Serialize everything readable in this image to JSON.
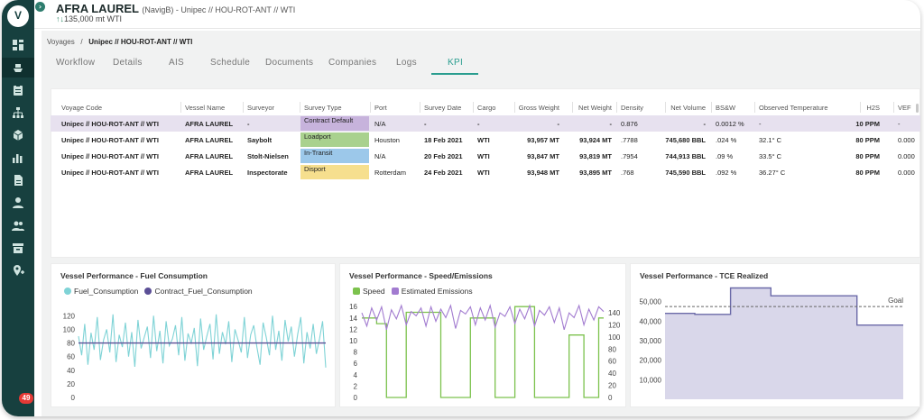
{
  "app": {
    "logo_text": "V",
    "notification_count": "49"
  },
  "header": {
    "title": "AFRA LAUREL",
    "title_suffix": "(NavigB) - Unipec // HOU-ROT-ANT // WTI",
    "quantity": "135,000 mt WTI"
  },
  "sidebar": {
    "items": [
      {
        "icon": "dashboard-icon"
      },
      {
        "icon": "ship-icon",
        "selected": true
      },
      {
        "icon": "clipboard-icon"
      },
      {
        "icon": "org-chart-icon"
      },
      {
        "icon": "cube-icon"
      },
      {
        "icon": "bar-chart-icon"
      },
      {
        "icon": "document-icon"
      },
      {
        "icon": "user-icon"
      },
      {
        "icon": "users-icon"
      },
      {
        "icon": "archive-icon"
      },
      {
        "icon": "location-icon"
      }
    ]
  },
  "breadcrumb": {
    "root": "Voyages",
    "separator": "/",
    "current": "Unipec // HOU-ROT-ANT // WTI"
  },
  "tabs": [
    {
      "label": "Workflow"
    },
    {
      "label": "Details"
    },
    {
      "label": "AIS"
    },
    {
      "label": "Schedule"
    },
    {
      "label": "Documents"
    },
    {
      "label": "Companies"
    },
    {
      "label": "Logs"
    },
    {
      "label": "KPI",
      "active": true
    }
  ],
  "table": {
    "columns": [
      "Voyage Code",
      "Vessel Name",
      "Surveyor",
      "Survey Type",
      "Port",
      "Survey Date",
      "Cargo",
      "Gross Weight",
      "Net Weight",
      "Density",
      "Net Volume",
      "BS&W",
      "Observed Temperature",
      "H2S",
      "VEF"
    ],
    "rows": [
      {
        "voyage": "Unipec // HOU-ROT-ANT // WTI",
        "vessel": "AFRA LAUREL",
        "surveyor": "-",
        "survey_type": "Contract Default",
        "type_color": "#c7b3dc",
        "port": "N/A",
        "date": "-",
        "cargo": "-",
        "gross": "-",
        "net": "-",
        "density": "0.876",
        "volume": "-",
        "bsw": "0.0012 %",
        "temp": "-",
        "h2s": "10 PPM",
        "vef": "-"
      },
      {
        "voyage": "Unipec // HOU-ROT-ANT // WTI",
        "vessel": "AFRA LAUREL",
        "surveyor": "Saybolt",
        "survey_type": "Loadport",
        "type_color": "#a9d18e",
        "port": "Houston",
        "date": "18 Feb 2021",
        "cargo": "WTI",
        "gross": "93,957 MT",
        "net": "93,924 MT",
        "density": ".7788",
        "volume": "745,680 BBL",
        "bsw": ".024 %",
        "temp": "32.1° C",
        "h2s": "80 PPM",
        "vef": "0.000"
      },
      {
        "voyage": "Unipec // HOU-ROT-ANT // WTI",
        "vessel": "AFRA LAUREL",
        "surveyor": "Stolt-Nielsen",
        "survey_type": "In-Transit",
        "type_color": "#9cc8ea",
        "port": "N/A",
        "date": "20 Feb 2021",
        "cargo": "WTI",
        "gross": "93,847 MT",
        "net": "93,819 MT",
        "density": ".7954",
        "volume": "744,913 BBL",
        "bsw": ".09 %",
        "temp": "33.5° C",
        "h2s": "80 PPM",
        "vef": "0.000"
      },
      {
        "voyage": "Unipec // HOU-ROT-ANT // WTI",
        "vessel": "AFRA LAUREL",
        "surveyor": "Inspectorate",
        "survey_type": "Disport",
        "type_color": "#f6df8e",
        "port": "Rotterdam",
        "date": "24 Feb 2021",
        "cargo": "WTI",
        "gross": "93,948 MT",
        "net": "93,895 MT",
        "density": ".768",
        "volume": "745,590 BBL",
        "bsw": ".092 %",
        "temp": "36.27° C",
        "h2s": "80 PPM",
        "vef": "0.000"
      }
    ]
  },
  "colors": {
    "accent": "#2a9d8f",
    "sidebar": "#17403f",
    "fuel": "#7fd3d6",
    "contract": "#5b4f96",
    "speed": "#7cc24d",
    "emissions": "#a27bd0",
    "tce": "#6b6aa8"
  },
  "chart_data": [
    {
      "type": "line",
      "title": "Vessel Performance - Fuel Consumption",
      "series": [
        {
          "name": "Fuel_Consumption",
          "color": "#7fd3d6",
          "values": [
            90,
            62,
            108,
            48,
            95,
            70,
            118,
            55,
            84,
            100,
            66,
            122,
            52,
            92,
            74,
            110,
            60,
            96,
            45,
            114,
            72,
            88,
            104,
            58,
            120,
            68,
            98,
            50,
            112,
            76,
            86,
            106,
            62,
            118,
            54,
            94,
            80,
            102,
            46,
            116,
            70,
            90,
            108,
            56,
            122,
            64,
            96,
            78,
            112,
            52,
            100,
            84,
            66,
            118,
            58,
            92,
            106,
            74,
            48,
            110,
            88,
            62,
            120,
            70,
            98,
            54,
            114,
            82,
            104,
            60,
            92,
            118,
            50,
            96,
            72,
            108,
            64,
            86,
            112,
            44
          ]
        },
        {
          "name": "Contract_Fuel_Consumption",
          "color": "#5b4f96",
          "values": [
            80,
            80
          ]
        }
      ],
      "yticks": [
        0,
        20,
        40,
        60,
        80,
        100,
        120
      ],
      "ylim": [
        0,
        135
      ]
    },
    {
      "type": "line",
      "title": "Vessel Performance - Speed/Emissions",
      "series": [
        {
          "name": "Speed",
          "color": "#7cc24d",
          "axis": "left",
          "values": [
            14,
            14,
            14,
            13,
            13,
            0,
            0,
            0,
            0,
            15,
            15,
            15,
            15,
            15,
            15,
            15,
            0,
            0,
            0,
            0,
            0,
            0,
            14,
            14,
            14,
            14,
            14,
            0,
            0,
            0,
            0,
            16,
            16,
            16,
            16,
            0,
            0,
            0,
            0,
            0,
            0,
            0,
            11,
            11,
            11,
            0,
            0,
            0,
            14,
            14
          ]
        },
        {
          "name": "Estimated Emissions",
          "color": "#a27bd0",
          "axis": "right",
          "values": [
            140,
            118,
            148,
            128,
            150,
            112,
            145,
            130,
            152,
            120,
            142,
            135,
            148,
            118,
            150,
            126,
            146,
            132,
            152,
            114,
            144,
            138,
            150,
            120,
            148,
            128,
            152,
            116,
            140,
            134,
            150,
            122,
            146,
            130,
            152,
            118,
            144,
            136,
            150,
            124,
            148,
            112,
            140,
            132,
            152,
            120,
            146,
            128,
            150,
            142
          ]
        }
      ],
      "yticks_left": [
        0,
        2,
        4,
        6,
        8,
        10,
        12,
        14,
        16
      ],
      "yticks_right": [
        0,
        20,
        40,
        60,
        80,
        100,
        120,
        140
      ],
      "ylim_left": [
        0,
        16.5
      ],
      "ylim_right": [
        0,
        155
      ]
    },
    {
      "type": "area",
      "title": "Vessel Performance - TCE Realized",
      "series": [
        {
          "name": "TCE Realized",
          "color": "#6b6aa8",
          "points": [
            [
              0,
              44000
            ],
            [
              0.45,
              44000
            ],
            [
              0.45,
              43500
            ],
            [
              0.99,
              43500
            ],
            [
              0.99,
              57000
            ],
            [
              1.6,
              57000
            ],
            [
              1.6,
              53000
            ],
            [
              2.9,
              53000
            ],
            [
              2.9,
              38000
            ],
            [
              3.6,
              38000
            ]
          ]
        }
      ],
      "goal_label": "Goal",
      "goal_value": 47500,
      "yticks": [
        "10,000",
        "20,000",
        "30,000",
        "40,000",
        "50,000"
      ],
      "ylim": [
        0,
        60000
      ]
    }
  ]
}
